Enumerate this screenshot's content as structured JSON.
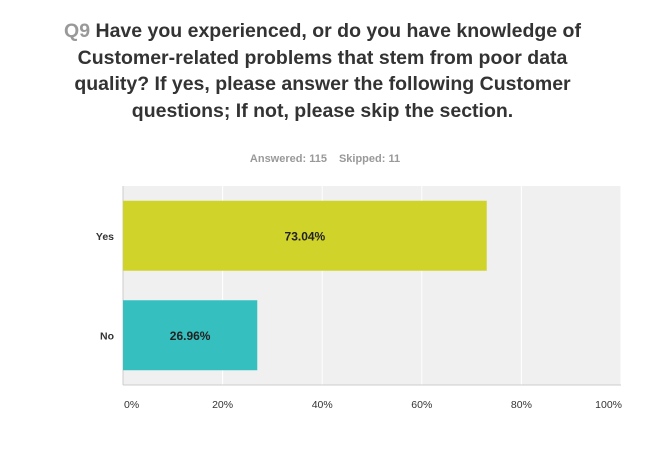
{
  "question": {
    "number": "Q9",
    "text": "Have you experienced, or do you have knowledge of Customer-related problems that stem from poor data quality? If yes, please answer the following Customer questions; If not, please skip the section."
  },
  "stats": {
    "answered": "Answered: 115",
    "skipped": "Skipped: 11"
  },
  "chart_data": {
    "type": "bar",
    "orientation": "horizontal",
    "categories": [
      "Yes",
      "No"
    ],
    "values": [
      73.04,
      26.96
    ],
    "value_labels": [
      "73.04%",
      "26.96%"
    ],
    "colors": [
      "#d0d42a",
      "#35bfbf"
    ],
    "xlim": [
      0,
      100
    ],
    "x_ticks": [
      "0%",
      "20%",
      "40%",
      "60%",
      "80%",
      "100%"
    ],
    "grid": true
  }
}
